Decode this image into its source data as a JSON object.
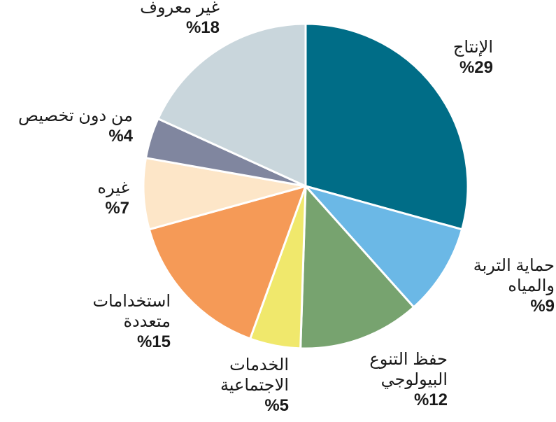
{
  "chart_data": {
    "type": "pie",
    "start_angle_deg": 0,
    "direction": "clockwise",
    "slices": [
      {
        "label": "الإنتاج",
        "value": 29,
        "value_text": "%29",
        "color": "#006d87"
      },
      {
        "label": "حماية التربة والمياه",
        "value": 9,
        "value_text": "%9",
        "color": "#6bb8e6"
      },
      {
        "label": "حفظ التنوع البيولوجي",
        "value": 12,
        "value_text": "%12",
        "color": "#77a36f"
      },
      {
        "label": "الخدمات الاجتماعية",
        "value": 5,
        "value_text": "%5",
        "color": "#f0e86c"
      },
      {
        "label": "استخدامات متعددة",
        "value": 15,
        "value_text": "%15",
        "color": "#f59a57"
      },
      {
        "label": "غيره",
        "value": 7,
        "value_text": "%7",
        "color": "#fde6c8"
      },
      {
        "label": "من دون تخصيص",
        "value": 4,
        "value_text": "%4",
        "color": "#80869f"
      },
      {
        "label": "غير معروف",
        "value": 18,
        "value_text": "%18",
        "color": "#c9d6dc"
      }
    ]
  }
}
